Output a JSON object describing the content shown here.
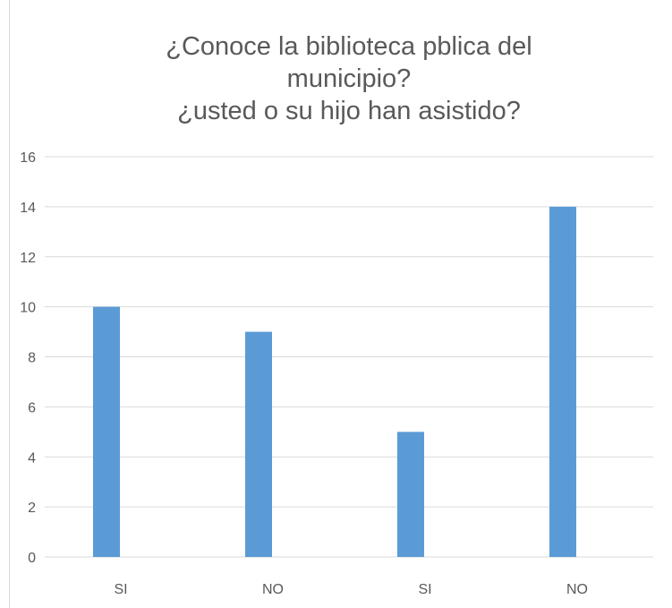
{
  "chart_data": {
    "type": "bar",
    "title": [
      "¿Conoce la biblioteca pblica del",
      "municipio?",
      "¿usted o su hijo han asistido?"
    ],
    "categories": [
      "SI",
      "NO",
      "SI",
      "NO"
    ],
    "values": [
      10,
      9,
      5,
      14
    ],
    "xlabel": "",
    "ylabel": "",
    "ylim": [
      0,
      16
    ],
    "yticks": [
      0,
      2,
      4,
      6,
      8,
      10,
      12,
      14,
      16
    ],
    "grid": true,
    "legend": "none",
    "colors": {
      "bar": "#5b9bd5",
      "grid": "#d9d9d9",
      "text": "#595959"
    }
  }
}
